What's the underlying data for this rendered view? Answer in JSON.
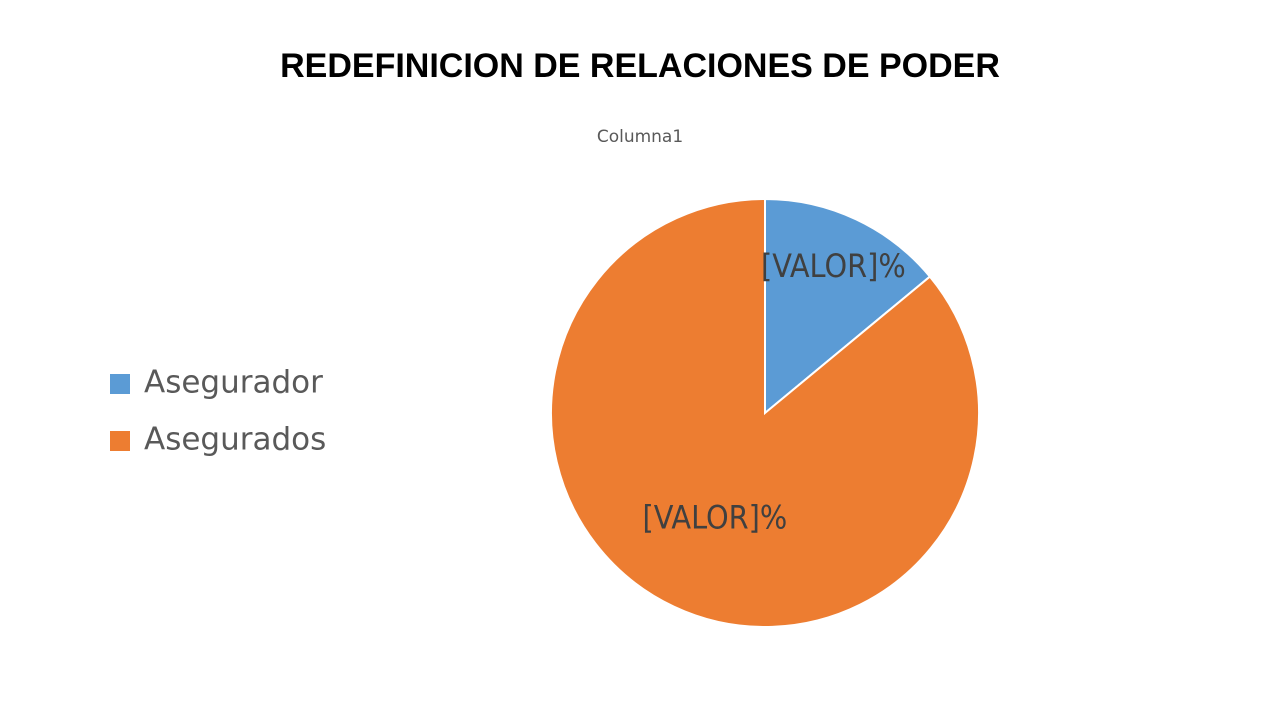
{
  "chart_data": {
    "type": "pie",
    "title": "REDEFINICION DE RELACIONES DE PODER",
    "subtitle": "Columna1",
    "categories": [
      "Asegurador",
      "Asegurados"
    ],
    "values": [
      14,
      86
    ],
    "value_labels": [
      "[VALOR]%",
      "[VALOR]%"
    ],
    "colors": [
      "#5b9bd5",
      "#ed7d31"
    ],
    "legend": "left"
  }
}
